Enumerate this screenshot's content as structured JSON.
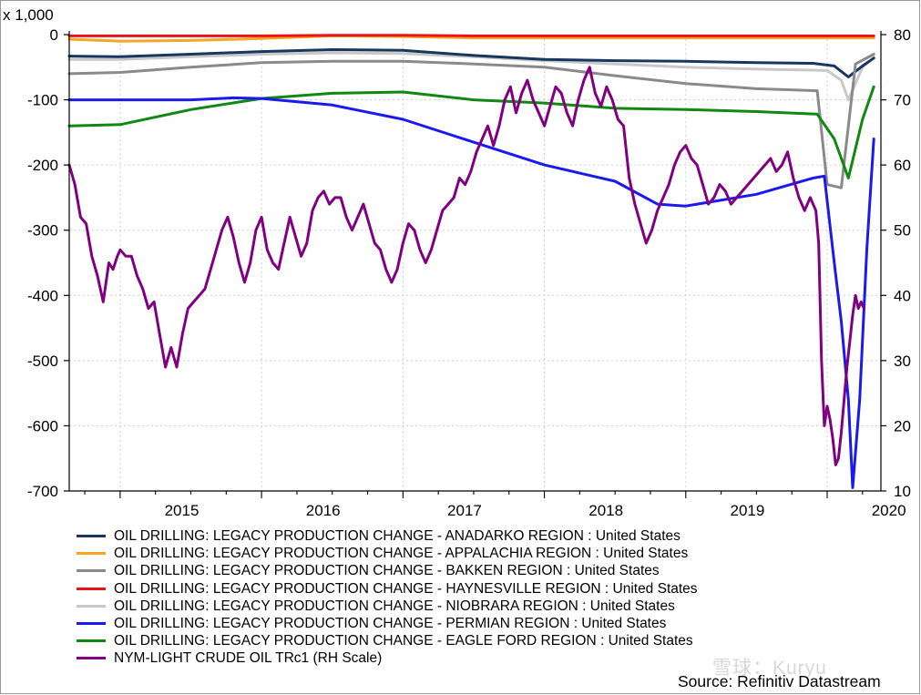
{
  "chart_data": {
    "type": "line",
    "y_unit_label": "x 1,000",
    "y_left": {
      "ylim": [
        -700,
        0
      ],
      "ticks": [
        0,
        -100,
        -200,
        -300,
        -400,
        -500,
        -600,
        -700
      ]
    },
    "y_right": {
      "ylim": [
        10,
        80
      ],
      "ticks": [
        80,
        70,
        60,
        50,
        40,
        30,
        20,
        10
      ]
    },
    "x": {
      "xlim": [
        2014.64,
        2020.38
      ],
      "ticks": [
        2015,
        2016,
        2017,
        2018,
        2019,
        2020
      ],
      "tick_labels": [
        "2015",
        "2016",
        "2017",
        "2018",
        "2019",
        "2020"
      ]
    },
    "grid": true,
    "legend_position": "bottom",
    "series": [
      {
        "name": "OIL DRILLING: LEGACY PRODUCTION CHANGE - ANADARKO REGION : United States",
        "color": "#17375e",
        "axis": "left",
        "points": [
          [
            2014.64,
            -33
          ],
          [
            2015.0,
            -34
          ],
          [
            2015.5,
            -30
          ],
          [
            2016.0,
            -26
          ],
          [
            2016.5,
            -23
          ],
          [
            2017.0,
            -24
          ],
          [
            2017.5,
            -32
          ],
          [
            2018.0,
            -38
          ],
          [
            2018.5,
            -40
          ],
          [
            2019.0,
            -41
          ],
          [
            2019.5,
            -43
          ],
          [
            2019.9,
            -44
          ],
          [
            2020.05,
            -48
          ],
          [
            2020.15,
            -65
          ],
          [
            2020.25,
            -48
          ],
          [
            2020.33,
            -36
          ]
        ]
      },
      {
        "name": "OIL DRILLING: LEGACY PRODUCTION CHANGE - APPALACHIA REGION : United States",
        "color": "#f5a623",
        "axis": "left",
        "points": [
          [
            2014.64,
            -7
          ],
          [
            2015.0,
            -10
          ],
          [
            2015.5,
            -9
          ],
          [
            2016.0,
            -6
          ],
          [
            2016.5,
            -2
          ],
          [
            2017.0,
            -3
          ],
          [
            2017.5,
            -5
          ],
          [
            2018.0,
            -5
          ],
          [
            2018.5,
            -5
          ],
          [
            2019.0,
            -5
          ],
          [
            2019.5,
            -5
          ],
          [
            2020.0,
            -5
          ],
          [
            2020.33,
            -5
          ]
        ]
      },
      {
        "name": "OIL DRILLING: LEGACY PRODUCTION CHANGE - BAKKEN REGION : United States",
        "color": "#8a8a8a",
        "axis": "left",
        "points": [
          [
            2014.64,
            -60
          ],
          [
            2015.0,
            -58
          ],
          [
            2015.5,
            -50
          ],
          [
            2016.0,
            -43
          ],
          [
            2016.5,
            -41
          ],
          [
            2017.0,
            -41
          ],
          [
            2017.5,
            -45
          ],
          [
            2018.0,
            -50
          ],
          [
            2018.5,
            -63
          ],
          [
            2019.0,
            -75
          ],
          [
            2019.5,
            -83
          ],
          [
            2019.93,
            -86
          ],
          [
            2020.0,
            -230
          ],
          [
            2020.1,
            -235
          ],
          [
            2020.2,
            -45
          ],
          [
            2020.33,
            -30
          ]
        ]
      },
      {
        "name": "OIL DRILLING: LEGACY PRODUCTION CHANGE - HAYNESVILLE REGION : United States",
        "color": "#e8141b",
        "axis": "left",
        "points": [
          [
            2014.64,
            -2
          ],
          [
            2015.0,
            -2
          ],
          [
            2015.5,
            -2
          ],
          [
            2016.0,
            -2
          ],
          [
            2016.5,
            -1
          ],
          [
            2017.0,
            -1
          ],
          [
            2017.5,
            -2
          ],
          [
            2018.0,
            -2
          ],
          [
            2018.5,
            -2
          ],
          [
            2019.0,
            -2
          ],
          [
            2019.5,
            -2
          ],
          [
            2020.0,
            -2
          ],
          [
            2020.33,
            -2
          ]
        ]
      },
      {
        "name": "OIL DRILLING: LEGACY PRODUCTION CHANGE - NIOBRARA REGION : United States",
        "color": "#c8c8c8",
        "axis": "left",
        "points": [
          [
            2014.64,
            -38
          ],
          [
            2015.0,
            -38
          ],
          [
            2015.5,
            -34
          ],
          [
            2016.0,
            -30
          ],
          [
            2016.5,
            -28
          ],
          [
            2017.0,
            -29
          ],
          [
            2017.5,
            -34
          ],
          [
            2018.0,
            -40
          ],
          [
            2018.5,
            -45
          ],
          [
            2019.0,
            -50
          ],
          [
            2019.5,
            -53
          ],
          [
            2020.0,
            -55
          ],
          [
            2020.1,
            -70
          ],
          [
            2020.15,
            -100
          ],
          [
            2020.25,
            -50
          ],
          [
            2020.33,
            -35
          ]
        ]
      },
      {
        "name": "OIL DRILLING: LEGACY PRODUCTION CHANGE - PERMIAN REGION : United States",
        "color": "#1a1aef",
        "axis": "left",
        "points": [
          [
            2014.64,
            -100
          ],
          [
            2015.0,
            -100
          ],
          [
            2015.5,
            -100
          ],
          [
            2015.8,
            -97
          ],
          [
            2016.0,
            -98
          ],
          [
            2016.5,
            -108
          ],
          [
            2017.0,
            -130
          ],
          [
            2017.5,
            -165
          ],
          [
            2018.0,
            -200
          ],
          [
            2018.5,
            -225
          ],
          [
            2018.8,
            -260
          ],
          [
            2019.0,
            -263
          ],
          [
            2019.5,
            -245
          ],
          [
            2019.9,
            -220
          ],
          [
            2019.98,
            -217
          ],
          [
            2020.05,
            -350
          ],
          [
            2020.1,
            -440
          ],
          [
            2020.15,
            -560
          ],
          [
            2020.18,
            -695
          ],
          [
            2020.23,
            -560
          ],
          [
            2020.28,
            -330
          ],
          [
            2020.33,
            -160
          ]
        ]
      },
      {
        "name": "OIL DRILLING: LEGACY PRODUCTION CHANGE - EAGLE FORD REGION : United States",
        "color": "#118811",
        "axis": "left",
        "points": [
          [
            2014.64,
            -140
          ],
          [
            2015.0,
            -138
          ],
          [
            2015.5,
            -115
          ],
          [
            2016.0,
            -98
          ],
          [
            2016.5,
            -90
          ],
          [
            2017.0,
            -88
          ],
          [
            2017.5,
            -100
          ],
          [
            2018.0,
            -105
          ],
          [
            2018.5,
            -113
          ],
          [
            2019.0,
            -115
          ],
          [
            2019.5,
            -118
          ],
          [
            2019.93,
            -122
          ],
          [
            2020.05,
            -160
          ],
          [
            2020.15,
            -220
          ],
          [
            2020.25,
            -130
          ],
          [
            2020.33,
            -80
          ]
        ]
      },
      {
        "name": "NYM-LIGHT CRUDE OIL TRc1 (RH Scale)",
        "color": "#800080",
        "axis": "right",
        "points": [
          [
            2014.64,
            60
          ],
          [
            2014.68,
            57
          ],
          [
            2014.72,
            52
          ],
          [
            2014.76,
            51
          ],
          [
            2014.8,
            46
          ],
          [
            2014.84,
            43
          ],
          [
            2014.88,
            39
          ],
          [
            2014.92,
            45
          ],
          [
            2014.95,
            44
          ],
          [
            2014.98,
            46
          ],
          [
            2015.0,
            47
          ],
          [
            2015.04,
            46
          ],
          [
            2015.08,
            46
          ],
          [
            2015.12,
            43
          ],
          [
            2015.16,
            41
          ],
          [
            2015.2,
            38
          ],
          [
            2015.24,
            39
          ],
          [
            2015.28,
            34
          ],
          [
            2015.32,
            29
          ],
          [
            2015.36,
            32
          ],
          [
            2015.4,
            29
          ],
          [
            2015.44,
            34
          ],
          [
            2015.48,
            38
          ],
          [
            2015.52,
            39
          ],
          [
            2015.56,
            40
          ],
          [
            2015.6,
            41
          ],
          [
            2015.64,
            44
          ],
          [
            2015.68,
            47
          ],
          [
            2015.72,
            50
          ],
          [
            2015.76,
            52
          ],
          [
            2015.8,
            49
          ],
          [
            2015.84,
            45
          ],
          [
            2015.88,
            42
          ],
          [
            2015.92,
            45
          ],
          [
            2015.96,
            50
          ],
          [
            2016.0,
            52
          ],
          [
            2016.04,
            47
          ],
          [
            2016.08,
            45
          ],
          [
            2016.12,
            44
          ],
          [
            2016.16,
            48
          ],
          [
            2016.2,
            52
          ],
          [
            2016.24,
            49
          ],
          [
            2016.28,
            46
          ],
          [
            2016.32,
            48
          ],
          [
            2016.36,
            53
          ],
          [
            2016.4,
            55
          ],
          [
            2016.44,
            56
          ],
          [
            2016.48,
            54
          ],
          [
            2016.52,
            55
          ],
          [
            2016.56,
            55
          ],
          [
            2016.6,
            52
          ],
          [
            2016.64,
            50
          ],
          [
            2016.68,
            52
          ],
          [
            2016.72,
            54
          ],
          [
            2016.76,
            51
          ],
          [
            2016.8,
            48
          ],
          [
            2016.84,
            47
          ],
          [
            2016.88,
            44
          ],
          [
            2016.92,
            42
          ],
          [
            2016.96,
            44
          ],
          [
            2017.0,
            48
          ],
          [
            2017.04,
            51
          ],
          [
            2017.08,
            50
          ],
          [
            2017.12,
            47
          ],
          [
            2017.16,
            45
          ],
          [
            2017.2,
            47
          ],
          [
            2017.24,
            50
          ],
          [
            2017.28,
            53
          ],
          [
            2017.32,
            54
          ],
          [
            2017.36,
            55
          ],
          [
            2017.4,
            58
          ],
          [
            2017.44,
            57
          ],
          [
            2017.48,
            59
          ],
          [
            2017.52,
            62
          ],
          [
            2017.56,
            64
          ],
          [
            2017.6,
            66
          ],
          [
            2017.64,
            63
          ],
          [
            2017.68,
            66
          ],
          [
            2017.72,
            70
          ],
          [
            2017.76,
            72
          ],
          [
            2017.8,
            68
          ],
          [
            2017.84,
            71
          ],
          [
            2017.88,
            73
          ],
          [
            2017.92,
            70
          ],
          [
            2017.96,
            68
          ],
          [
            2018.0,
            66
          ],
          [
            2018.04,
            69
          ],
          [
            2018.08,
            72
          ],
          [
            2018.12,
            71
          ],
          [
            2018.16,
            68
          ],
          [
            2018.2,
            66
          ],
          [
            2018.24,
            70
          ],
          [
            2018.28,
            73
          ],
          [
            2018.32,
            75
          ],
          [
            2018.36,
            71
          ],
          [
            2018.4,
            69
          ],
          [
            2018.44,
            72
          ],
          [
            2018.48,
            70
          ],
          [
            2018.52,
            67
          ],
          [
            2018.56,
            66
          ],
          [
            2018.6,
            58
          ],
          [
            2018.64,
            54
          ],
          [
            2018.68,
            51
          ],
          [
            2018.72,
            48
          ],
          [
            2018.76,
            50
          ],
          [
            2018.8,
            53
          ],
          [
            2018.84,
            55
          ],
          [
            2018.88,
            57
          ],
          [
            2018.92,
            60
          ],
          [
            2018.96,
            62
          ],
          [
            2019.0,
            63
          ],
          [
            2019.04,
            61
          ],
          [
            2019.08,
            60
          ],
          [
            2019.12,
            57
          ],
          [
            2019.16,
            54
          ],
          [
            2019.2,
            55
          ],
          [
            2019.24,
            57
          ],
          [
            2019.28,
            56
          ],
          [
            2019.32,
            54
          ],
          [
            2019.36,
            55
          ],
          [
            2019.4,
            56
          ],
          [
            2019.44,
            57
          ],
          [
            2019.48,
            58
          ],
          [
            2019.52,
            59
          ],
          [
            2019.56,
            60
          ],
          [
            2019.6,
            61
          ],
          [
            2019.64,
            59
          ],
          [
            2019.68,
            60
          ],
          [
            2019.72,
            62
          ],
          [
            2019.76,
            58
          ],
          [
            2019.8,
            55
          ],
          [
            2019.84,
            53
          ],
          [
            2019.88,
            55
          ],
          [
            2019.92,
            53
          ],
          [
            2019.94,
            48
          ],
          [
            2019.96,
            30
          ],
          [
            2019.98,
            20
          ],
          [
            2020.0,
            23
          ],
          [
            2020.02,
            21
          ],
          [
            2020.04,
            18
          ],
          [
            2020.06,
            14
          ],
          [
            2020.08,
            15
          ],
          [
            2020.1,
            19
          ],
          [
            2020.12,
            24
          ],
          [
            2020.14,
            29
          ],
          [
            2020.16,
            33
          ],
          [
            2020.18,
            37
          ],
          [
            2020.2,
            40
          ],
          [
            2020.22,
            38
          ],
          [
            2020.24,
            39
          ],
          [
            2020.26,
            38
          ]
        ]
      }
    ]
  },
  "source": "Source: Refinitiv Datastream",
  "watermark": "雪球：Kuryu"
}
